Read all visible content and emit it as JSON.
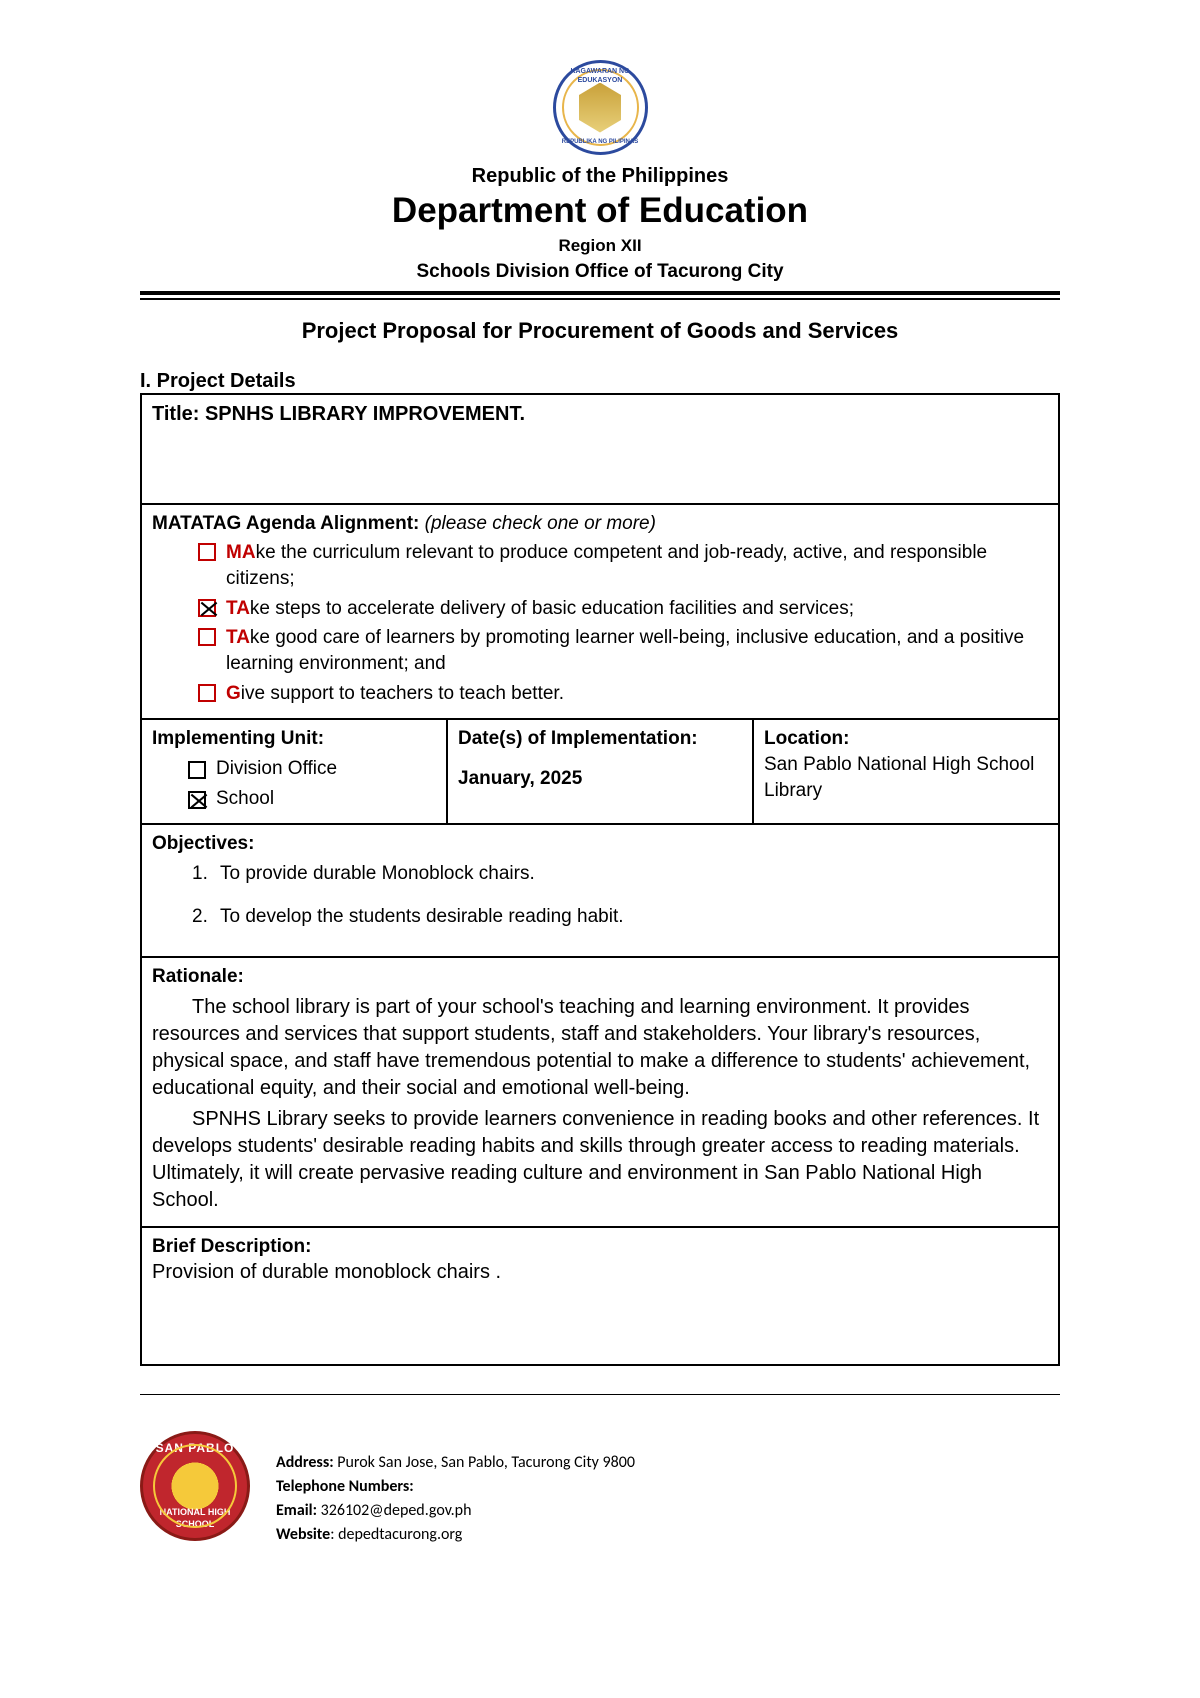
{
  "header": {
    "country": "Republic of the Philippines",
    "department": "Department of Education",
    "region": "Region XII",
    "sdo": "Schools Division Office of Tacurong City",
    "sealTopText1": "KAGAWARAN NG EDUKASYON",
    "sealTopText2": "REPUBLIKA NG PILIPINAS"
  },
  "proposal": {
    "mainTitle": "Project Proposal for Procurement of Goods and Services",
    "section1": "I.  Project Details",
    "titleLabel": "Title: ",
    "titleValue": "SPNHS LIBRARY IMPROVEMENT.",
    "agendaLabel": "MATATAG Agenda Alignment: ",
    "agendaHint": "(please check one or more)",
    "agenda": [
      {
        "prefix": "MA",
        "rest": "ke the curriculum relevant to produce competent and job-ready, active, and responsible citizens;",
        "checked": false
      },
      {
        "prefix": "TA",
        "rest": "ke steps to accelerate delivery of basic education facilities and services;",
        "checked": true
      },
      {
        "prefix": "TA",
        "rest": "ke good care of learners by promoting learner well-being, inclusive education, and a positive learning environment; and",
        "checked": false
      },
      {
        "prefix": "G",
        "rest": "ive support to teachers to teach better.",
        "checked": false
      }
    ],
    "implUnitLabel": "Implementing Unit:",
    "implOptions": [
      {
        "label": "Division Office",
        "checked": false
      },
      {
        "label": "School",
        "checked": true
      }
    ],
    "datesLabel": "Date(s) of Implementation:",
    "datesValue": "January, 2025",
    "locationLabel": "Location:",
    "locationValue": "San Pablo National High School Library",
    "objectivesLabel": "Objectives:",
    "objectives": [
      "To provide durable Monoblock chairs.",
      "To develop the students desirable reading habit."
    ],
    "rationaleLabel": "Rationale:",
    "rationale": [
      "The school library is part of your school's teaching and learning environment. It provides resources and services that support students, staff and stakeholders. Your library's resources, physical space, and staff have tremendous potential to make a difference to students' achievement, educational equity, and their social and emotional well-being.",
      "SPNHS Library seeks to provide learners convenience in reading books and other  references. It develops students' desirable reading habits and skills through greater access to reading materials. Ultimately, it will create pervasive reading culture and environment in San Pablo National High School."
    ],
    "briefLabel": "Brief Description:",
    "briefValue": "Provision of durable monoblock chairs ."
  },
  "footer": {
    "sealTop": "SAN PABLO",
    "sealBot": "NATIONAL HIGH SCHOOL",
    "addressLabel": "Address: ",
    "addressValue": "Purok San Jose, San Pablo, Tacurong City 9800",
    "telLabel": "Telephone Numbers:",
    "telValue": "",
    "emailLabel": "Email: ",
    "emailValue": "326102@deped.gov.ph",
    "webLabel": "Website",
    "webValue": ": depedtacurong.org"
  }
}
